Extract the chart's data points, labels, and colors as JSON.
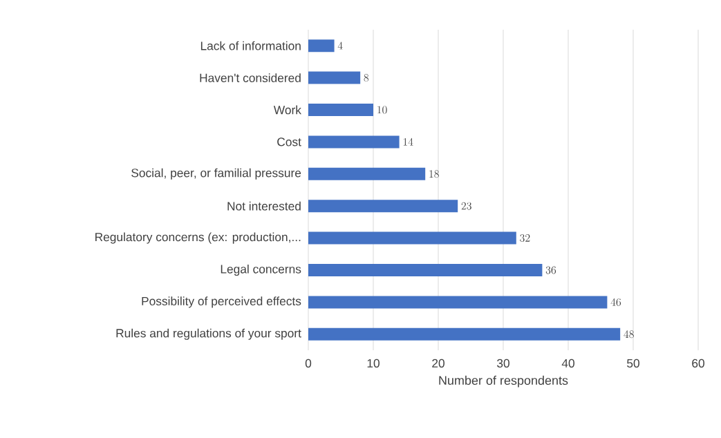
{
  "chart_data": {
    "type": "bar",
    "orientation": "horizontal",
    "xlabel": "Number of respondents",
    "categories": [
      "Lack of information",
      "Haven't considered",
      "Work",
      "Cost",
      "Social, peer, or familial pressure",
      "Not interested",
      "Regulatory concerns (ex: production,...",
      "Legal concerns",
      "Possibility of perceived effects",
      "Rules and regulations of your sport"
    ],
    "values": [
      4,
      8,
      10,
      14,
      18,
      23,
      32,
      36,
      46,
      48
    ],
    "color": "#4472c4",
    "xlim": [
      0,
      60
    ],
    "xticks": [
      0,
      10,
      20,
      30,
      40,
      50,
      60
    ],
    "grid": "x",
    "data_labels": true
  }
}
